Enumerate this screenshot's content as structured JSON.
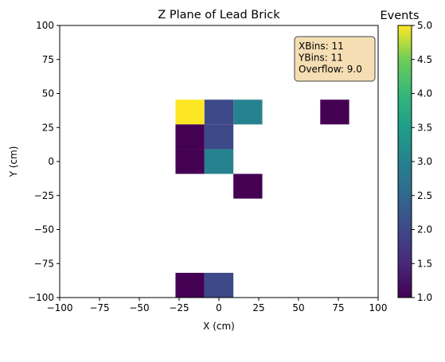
{
  "chart_data": {
    "type": "heatmap",
    "title": "Z Plane of Lead Brick",
    "xlabel": "X (cm)",
    "ylabel": "Y (cm)",
    "xlim": [
      -100,
      100
    ],
    "ylim": [
      -100,
      100
    ],
    "xticks": [
      "−100",
      "−75",
      "−50",
      "−25",
      "0",
      "25",
      "50",
      "75",
      "100"
    ],
    "yticks": [
      "−100",
      "−75",
      "−50",
      "−25",
      "0",
      "25",
      "50",
      "75",
      "100"
    ],
    "bin_edges": [
      -100,
      -81.82,
      -63.64,
      -45.45,
      -27.27,
      -9.09,
      9.09,
      27.27,
      45.45,
      63.64,
      81.82,
      100
    ],
    "cells": [
      {
        "x0": -27.27,
        "x1": -9.09,
        "y0": 27.27,
        "y1": 45.45,
        "value": 5
      },
      {
        "x0": -9.09,
        "x1": 9.09,
        "y0": 27.27,
        "y1": 45.45,
        "value": 2
      },
      {
        "x0": 9.09,
        "x1": 27.27,
        "y0": 27.27,
        "y1": 45.45,
        "value": 3
      },
      {
        "x0": 63.64,
        "x1": 81.82,
        "y0": 27.27,
        "y1": 45.45,
        "value": 1
      },
      {
        "x0": -27.27,
        "x1": -9.09,
        "y0": 9.09,
        "y1": 27.27,
        "value": 1
      },
      {
        "x0": -9.09,
        "x1": 9.09,
        "y0": 9.09,
        "y1": 27.27,
        "value": 2
      },
      {
        "x0": -27.27,
        "x1": -9.09,
        "y0": -9.09,
        "y1": 9.09,
        "value": 1
      },
      {
        "x0": -9.09,
        "x1": 9.09,
        "y0": -9.09,
        "y1": 9.09,
        "value": 3
      },
      {
        "x0": 9.09,
        "x1": 27.27,
        "y0": -27.27,
        "y1": -9.09,
        "value": 1
      },
      {
        "x0": -27.27,
        "x1": -9.09,
        "y0": -100,
        "y1": -81.82,
        "value": 1
      },
      {
        "x0": -9.09,
        "x1": 9.09,
        "y0": -100,
        "y1": -81.82,
        "value": 2
      }
    ],
    "colorbar": {
      "label": "Events",
      "min": 1.0,
      "max": 5.0,
      "ticks": [
        "1.0",
        "1.5",
        "2.0",
        "2.5",
        "3.0",
        "3.5",
        "4.0",
        "4.5",
        "5.0"
      ],
      "colormap": "viridis"
    },
    "stats_box": {
      "lines": [
        "XBins: 11",
        "YBins: 11",
        "Overflow: 9.0"
      ],
      "placement": "top-right",
      "background": "#f5deb3"
    },
    "grid": false
  }
}
